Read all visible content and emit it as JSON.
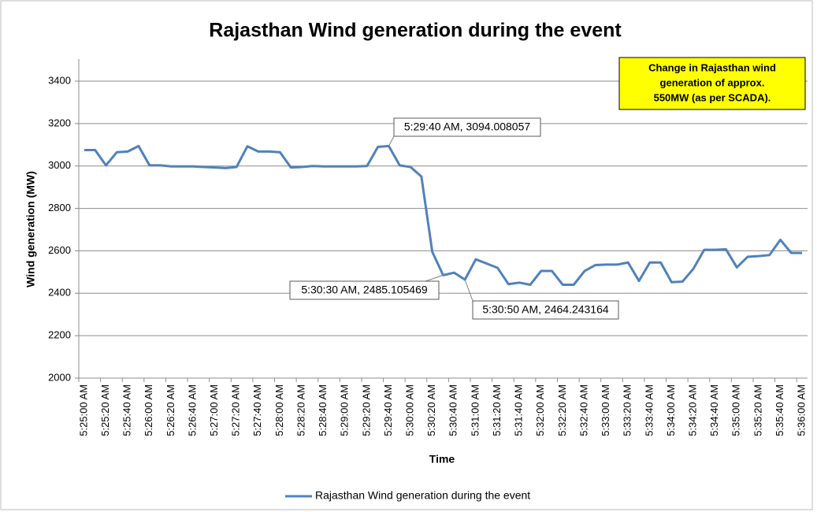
{
  "chart_data": {
    "type": "line",
    "title": "Rajasthan Wind generation during the event",
    "x_label": "Time",
    "y_label": "Wind generation (MW)",
    "categories": [
      "5:25:00 AM",
      null,
      "5:25:20 AM",
      null,
      "5:25:40 AM",
      null,
      "5:26:00 AM",
      null,
      "5:26:20 AM",
      null,
      "5:26:40 AM",
      null,
      "5:27:00 AM",
      null,
      "5:27:20 AM",
      null,
      "5:27:40 AM",
      null,
      "5:28:00 AM",
      null,
      "5:28:20 AM",
      null,
      "5:28:40 AM",
      null,
      "5:29:00 AM",
      null,
      "5:29:20 AM",
      null,
      "5:29:40 AM",
      null,
      "5:30:00 AM",
      null,
      "5:30:20 AM",
      null,
      "5:30:40 AM",
      null,
      "5:31:00 AM",
      null,
      "5:31:20 AM",
      null,
      "5:31:40 AM",
      null,
      "5:32:00 AM",
      null,
      "5:32:20 AM",
      null,
      "5:32:40 AM",
      null,
      "5:33:00 AM",
      null,
      "5:33:20 AM",
      null,
      "5:33:40 AM",
      null,
      "5:34:00 AM",
      null,
      "5:34:20 AM",
      null,
      "5:34:40 AM",
      null,
      "5:35:00 AM",
      null,
      "5:35:20 AM",
      null,
      "5:35:40 AM",
      null,
      "5:36:00 AM"
    ],
    "series": [
      {
        "name": "Rajasthan Wind generation during the event",
        "color": "#4f81bd",
        "values": [
          3075,
          3075,
          3003,
          3065,
          3068,
          3094,
          3003,
          3003,
          2998,
          2998,
          2998,
          2995,
          2993,
          2990,
          2995,
          3093,
          3068,
          3068,
          3065,
          2993,
          2995,
          3000,
          2998,
          2998,
          2998,
          2998,
          3000,
          3090,
          3094.008057,
          3003,
          2995,
          2950,
          2595,
          2485.105469,
          2497,
          2464.243164,
          2560,
          2540,
          2520,
          2443,
          2450,
          2440,
          2505,
          2505,
          2440,
          2440,
          2505,
          2533,
          2535,
          2535,
          2545,
          2458,
          2545,
          2545,
          2452,
          2455,
          2515,
          2605,
          2605,
          2607,
          2522,
          2572,
          2575,
          2580,
          2652,
          2590,
          2590
        ]
      }
    ],
    "ylim": [
      2000,
      3400
    ],
    "yticks": [
      2000,
      2200,
      2400,
      2600,
      2800,
      3000,
      3200,
      3400
    ],
    "grid": true,
    "legend": "bottom",
    "annotations": [
      "5:29:40 AM, 3094.008057",
      "5:30:30 AM, 2485.105469",
      "5:30:50 AM, 2464.243164"
    ],
    "note": [
      "Change in Rajasthan wind",
      "generation of approx.",
      "550MW (as per SCADA)."
    ]
  }
}
